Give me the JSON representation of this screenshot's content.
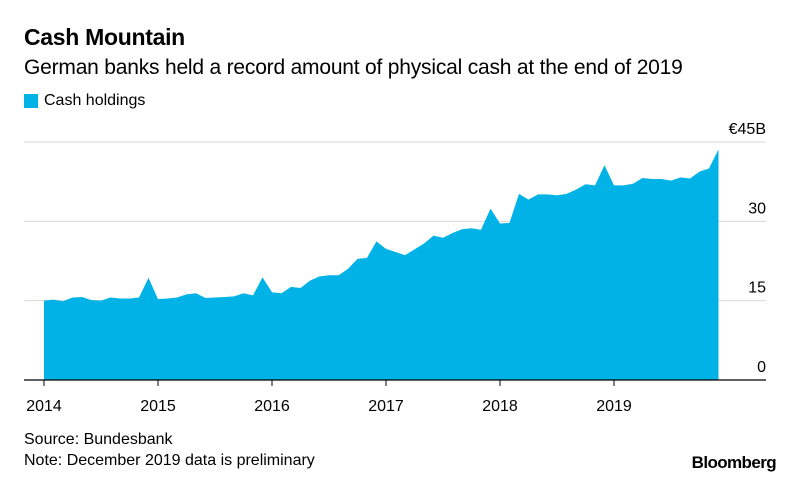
{
  "header": {
    "title": "Cash Mountain",
    "subtitle": "German banks held a record amount of physical cash at the end of 2019"
  },
  "footer": {
    "source": "Source: Bundesbank",
    "note": "Note: December 2019 data is preliminary",
    "logo": "Bloomberg"
  },
  "colors": {
    "series": "#00b2e6",
    "grid": "#d7d7d7",
    "axis": "#000000"
  },
  "chart_data": {
    "type": "area",
    "title": "Cash Mountain",
    "subtitle": "German banks held a record amount of physical cash at the end of 2019",
    "xlabel": "",
    "ylabel": "",
    "ylim": [
      0,
      45
    ],
    "yticks": [
      0,
      15,
      30,
      45
    ],
    "ytick_labels": [
      "0",
      "15",
      "30",
      "€45B"
    ],
    "xticks": [
      "2014",
      "2015",
      "2016",
      "2017",
      "2018",
      "2019"
    ],
    "grid": true,
    "legend": "top-left",
    "series": [
      {
        "name": "Cash holdings",
        "x_start": "2014-01",
        "frequency": "monthly",
        "values": [
          15.0,
          15.2,
          14.9,
          15.6,
          15.7,
          15.1,
          15.0,
          15.6,
          15.4,
          15.4,
          15.6,
          19.3,
          15.3,
          15.4,
          15.6,
          16.2,
          16.4,
          15.5,
          15.6,
          15.7,
          15.8,
          16.4,
          16.0,
          19.4,
          16.6,
          16.4,
          17.6,
          17.4,
          18.8,
          19.6,
          19.8,
          19.8,
          21.0,
          22.9,
          23.1,
          26.2,
          24.8,
          24.2,
          23.6,
          24.7,
          25.8,
          27.3,
          26.9,
          27.8,
          28.5,
          28.7,
          28.4,
          32.4,
          29.6,
          29.7,
          35.2,
          34.1,
          35.1,
          35.1,
          34.9,
          35.2,
          36.0,
          37.0,
          36.8,
          40.6,
          36.8,
          36.8,
          37.1,
          38.2,
          38.0,
          38.0,
          37.7,
          38.3,
          38.1,
          39.4,
          40.0,
          43.6
        ]
      }
    ]
  }
}
